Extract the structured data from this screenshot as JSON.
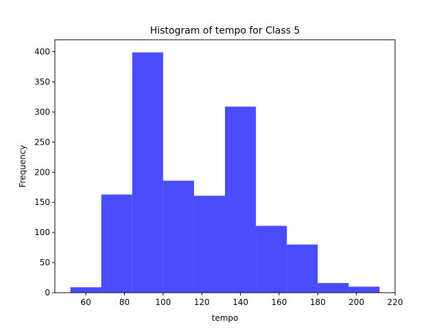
{
  "chart_data": {
    "type": "bar",
    "subtype": "histogram",
    "title": "Histogram of tempo for Class 5",
    "xlabel": "tempo",
    "ylabel": "Frequency",
    "bin_edges": [
      52,
      68,
      84,
      100,
      116,
      132,
      148,
      164,
      180,
      196,
      212
    ],
    "values": [
      9,
      163,
      399,
      186,
      161,
      309,
      111,
      80,
      16,
      10
    ],
    "xlim": [
      44,
      220
    ],
    "ylim": [
      0,
      420
    ],
    "xticks": [
      60,
      80,
      100,
      120,
      140,
      160,
      180,
      200,
      220
    ],
    "yticks": [
      0,
      50,
      100,
      150,
      200,
      250,
      300,
      350,
      400
    ],
    "bar_color": "#0000ff",
    "bar_opacity": 0.7,
    "grid": false,
    "legend": "none"
  }
}
